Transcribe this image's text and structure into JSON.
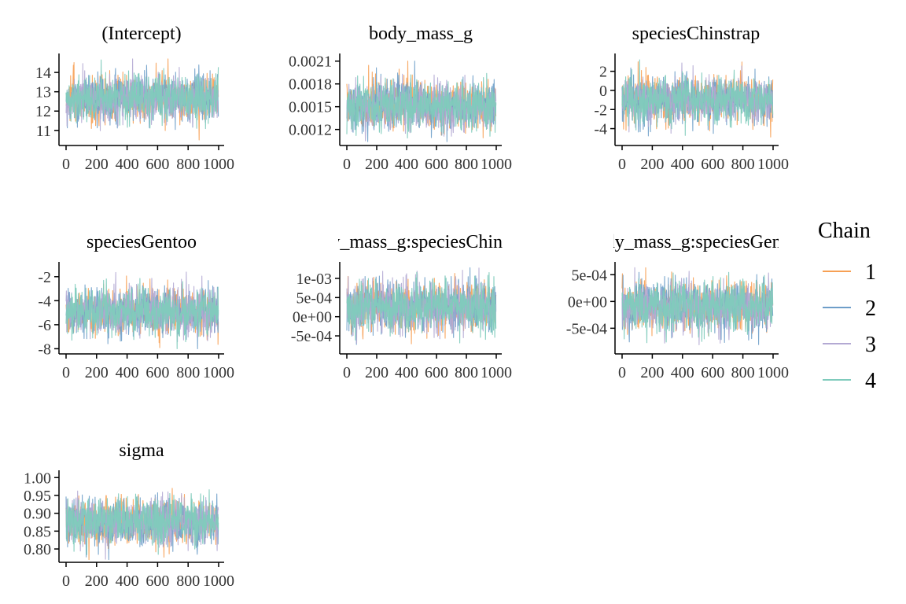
{
  "chart_data": {
    "type": "line",
    "legend": {
      "title": "Chain",
      "placement": "right",
      "entries": [
        {
          "label": "1",
          "color": "#F7A054"
        },
        {
          "label": "2",
          "color": "#6E9EC9"
        },
        {
          "label": "3",
          "color": "#B3A9D3"
        },
        {
          "label": "4",
          "color": "#7FCBBC"
        }
      ]
    },
    "x_ticks": [
      "0",
      "200",
      "400",
      "600",
      "800",
      "1000"
    ],
    "x_range": [
      0,
      1000
    ],
    "grid": false,
    "panels": [
      {
        "title": "(Intercept)",
        "y_ticks": [
          "11",
          "12",
          "13",
          "14"
        ],
        "y_tick_values": [
          11,
          12,
          13,
          14
        ],
        "ylim": [
          10.3,
          14.9
        ],
        "center": 12.65,
        "spread": 0.62,
        "min": 10.4,
        "max": 14.7
      },
      {
        "title": "body_mass_g",
        "y_ticks": [
          "0.0012",
          "0.0015",
          "0.0018",
          "0.0021"
        ],
        "y_tick_values": [
          0.0012,
          0.0015,
          0.0018,
          0.0021
        ],
        "ylim": [
          0.00101,
          0.00218
        ],
        "center": 0.00152,
        "spread": 0.00016,
        "min": 0.00104,
        "max": 0.0021
      },
      {
        "title": "speciesChinstrap",
        "y_ticks": [
          "-4",
          "-2",
          "0",
          "2"
        ],
        "y_tick_values": [
          -4,
          -2,
          0,
          2
        ],
        "ylim": [
          -5.6,
          3.7
        ],
        "center": -1.0,
        "spread": 1.2,
        "min": -4.9,
        "max": 3.2
      },
      {
        "title": "speciesGentoo",
        "y_ticks": [
          "-8",
          "-6",
          "-4",
          "-2"
        ],
        "y_tick_values": [
          -8,
          -6,
          -4,
          -2
        ],
        "ylim": [
          -8.3,
          -0.9
        ],
        "center": -4.9,
        "spread": 1.0,
        "min": -8.1,
        "max": -1.3
      },
      {
        "title": "body_mass_g:speciesChinstrap",
        "y_ticks": [
          "-5e-04",
          "0e+00",
          "5e-04",
          "1e-03"
        ],
        "y_tick_values": [
          -0.0005,
          0,
          0.0005,
          0.001
        ],
        "ylim": [
          -0.00093,
          0.00139
        ],
        "center": 0.00026,
        "spread": 0.00033,
        "min": -0.00082,
        "max": 0.00128
      },
      {
        "title": "body_mass_g:speciesGentoo",
        "y_ticks": [
          "-5e-04",
          "0e+00",
          "5e-04"
        ],
        "y_tick_values": [
          -0.0005,
          0,
          0.0005
        ],
        "ylim": [
          -0.00095,
          0.00071
        ],
        "center": -8e-05,
        "spread": 0.00023,
        "min": -0.00088,
        "max": 0.00065
      },
      {
        "title": "sigma",
        "y_ticks": [
          "0.80",
          "0.85",
          "0.90",
          "0.95",
          "1.00"
        ],
        "y_tick_values": [
          0.8,
          0.85,
          0.9,
          0.95,
          1.0
        ],
        "ylim": [
          0.767,
          1.016
        ],
        "center": 0.875,
        "spread": 0.034,
        "min": 0.77,
        "max": 1.01
      }
    ],
    "draws_per_chain": 1000
  }
}
